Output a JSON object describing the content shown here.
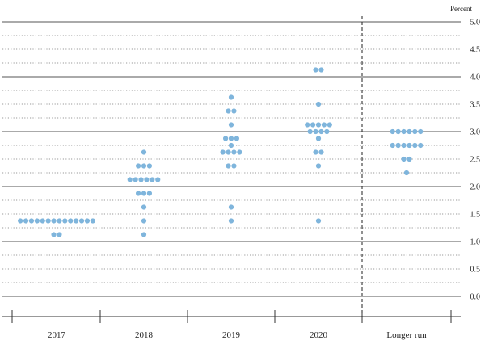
{
  "chart_data": {
    "type": "scatter",
    "ylabel": "Percent",
    "ylim": [
      0,
      5
    ],
    "yticks": [
      "0.0",
      "0.5",
      "1.0",
      "1.5",
      "2.0",
      "2.5",
      "3.0",
      "3.5",
      "4.0",
      "4.5",
      "5.0"
    ],
    "grid": "dotted at 0.25 increments, solid at whole numbers",
    "dot_color": "#7fb5dc",
    "categories": [
      "2017",
      "2018",
      "2019",
      "2020",
      "Longer run"
    ],
    "divider_after": "2020",
    "dots": [
      {
        "category": "2017",
        "y": 1.375,
        "count": 14
      },
      {
        "category": "2017",
        "y": 1.125,
        "count": 2
      },
      {
        "category": "2018",
        "y": 2.625,
        "count": 1
      },
      {
        "category": "2018",
        "y": 2.375,
        "count": 3
      },
      {
        "category": "2018",
        "y": 2.125,
        "count": 6
      },
      {
        "category": "2018",
        "y": 1.875,
        "count": 3
      },
      {
        "category": "2018",
        "y": 1.625,
        "count": 1
      },
      {
        "category": "2018",
        "y": 1.375,
        "count": 1
      },
      {
        "category": "2018",
        "y": 1.125,
        "count": 1
      },
      {
        "category": "2019",
        "y": 3.625,
        "count": 1
      },
      {
        "category": "2019",
        "y": 3.375,
        "count": 2
      },
      {
        "category": "2019",
        "y": 3.125,
        "count": 1
      },
      {
        "category": "2019",
        "y": 2.875,
        "count": 3
      },
      {
        "category": "2019",
        "y": 2.75,
        "count": 1
      },
      {
        "category": "2019",
        "y": 2.625,
        "count": 4
      },
      {
        "category": "2019",
        "y": 2.375,
        "count": 2
      },
      {
        "category": "2019",
        "y": 1.625,
        "count": 1
      },
      {
        "category": "2019",
        "y": 1.375,
        "count": 1
      },
      {
        "category": "2020",
        "y": 4.125,
        "count": 2
      },
      {
        "category": "2020",
        "y": 3.5,
        "count": 1
      },
      {
        "category": "2020",
        "y": 3.125,
        "count": 5
      },
      {
        "category": "2020",
        "y": 3.0,
        "count": 4
      },
      {
        "category": "2020",
        "y": 2.875,
        "count": 1
      },
      {
        "category": "2020",
        "y": 2.625,
        "count": 2
      },
      {
        "category": "2020",
        "y": 2.375,
        "count": 1
      },
      {
        "category": "2020",
        "y": 1.375,
        "count": 1
      },
      {
        "category": "Longer run",
        "y": 3.0,
        "count": 6
      },
      {
        "category": "Longer run",
        "y": 2.75,
        "count": 6
      },
      {
        "category": "Longer run",
        "y": 2.5,
        "count": 2
      },
      {
        "category": "Longer run",
        "y": 2.25,
        "count": 1
      }
    ]
  }
}
